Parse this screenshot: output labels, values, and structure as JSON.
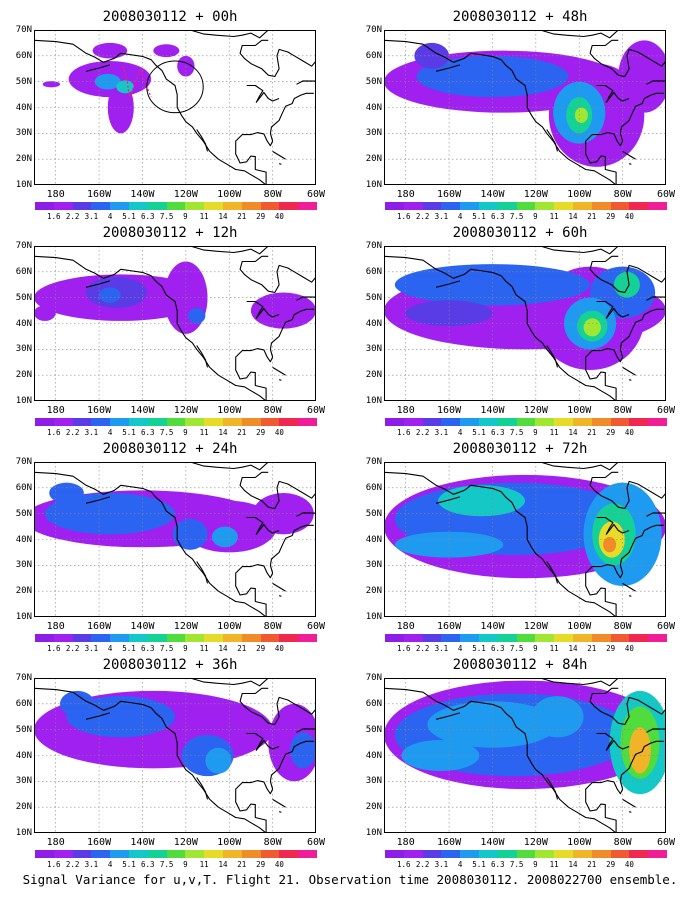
{
  "footer": "Signal Variance for u,v,T. Flight 21. Observation time 2008030112. 2008022700 ensemble.",
  "lat_labels": [
    "70N",
    "60N",
    "50N",
    "40N",
    "30N",
    "20N",
    "10N"
  ],
  "lon_labels": [
    "180",
    "160W",
    "140W",
    "120W",
    "100W",
    "80W",
    "60W"
  ],
  "colorbar": {
    "colors": [
      "#8c1ee6",
      "#a020f0",
      "#5a3ce6",
      "#2a64f0",
      "#1e9bf0",
      "#14c8c8",
      "#14d296",
      "#50dc3c",
      "#a0e632",
      "#e6dc28",
      "#f0b428",
      "#f08c28",
      "#f05a32",
      "#f02850",
      "#f01e96"
    ],
    "labels": [
      "1.6",
      "2.2",
      "3.1",
      "4",
      "5.1",
      "6.3",
      "7.5",
      "9",
      "11",
      "14",
      "21",
      "29",
      "40"
    ]
  },
  "panels": [
    {
      "title": "2008030112 + 00h",
      "col": 0,
      "row": 0,
      "level": 0
    },
    {
      "title": "2008030112 + 48h",
      "col": 1,
      "row": 0,
      "level": 2
    },
    {
      "title": "2008030112 + 12h",
      "col": 0,
      "row": 1,
      "level": 0.6
    },
    {
      "title": "2008030112 + 60h",
      "col": 1,
      "row": 1,
      "level": 2.6
    },
    {
      "title": "2008030112 + 24h",
      "col": 0,
      "row": 2,
      "level": 1
    },
    {
      "title": "2008030112 + 72h",
      "col": 1,
      "row": 2,
      "level": 3.3
    },
    {
      "title": "2008030112 + 36h",
      "col": 0,
      "row": 3,
      "level": 1.5
    },
    {
      "title": "2008030112 + 84h",
      "col": 1,
      "row": 3,
      "level": 3.8
    }
  ]
}
